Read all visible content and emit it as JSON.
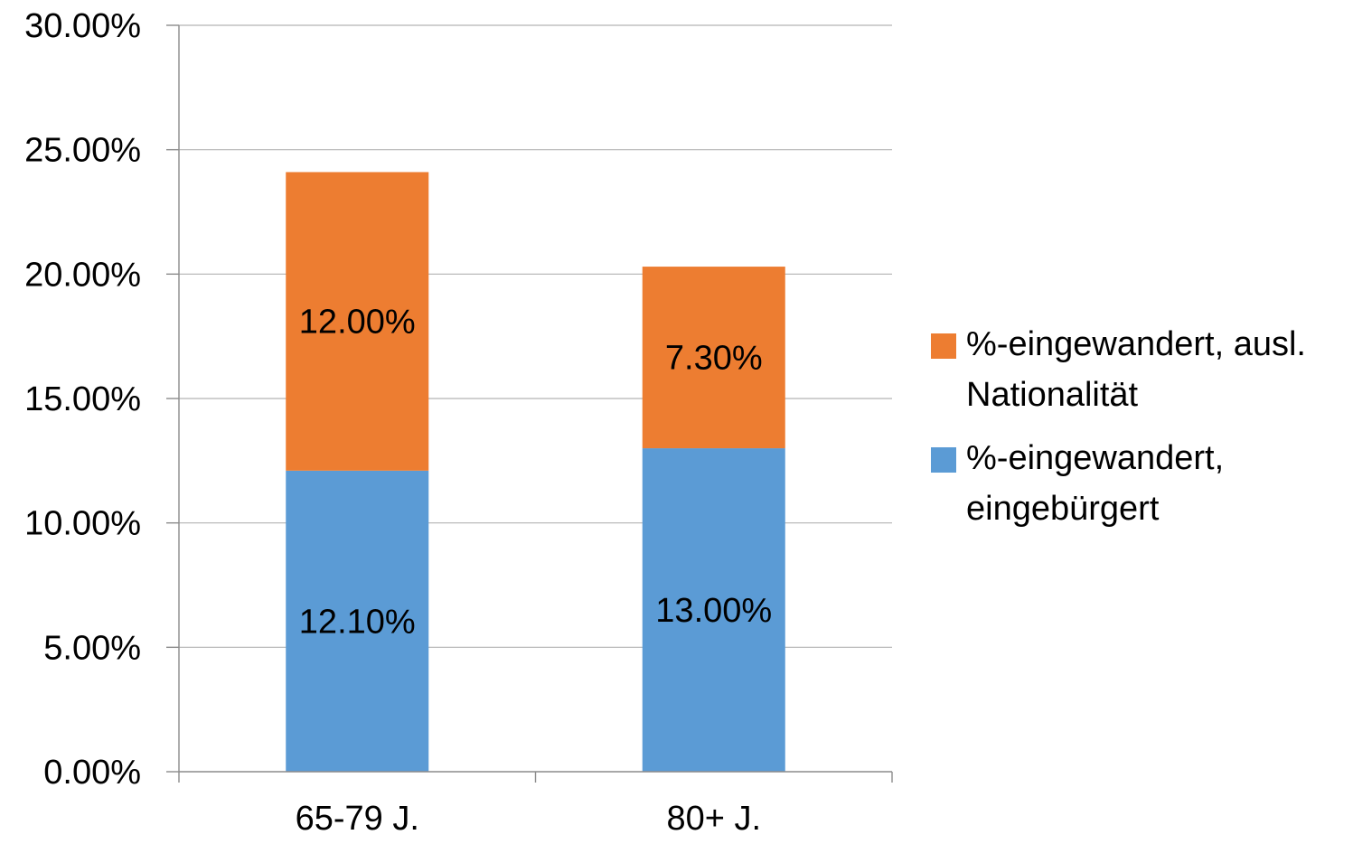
{
  "chart_data": {
    "type": "bar",
    "stacked": true,
    "categories": [
      "65-79 J.",
      "80+ J."
    ],
    "series": [
      {
        "name": "%-eingewandert, eingebürgert",
        "legend_lines": [
          "%-eingewandert,",
          "eingebürgert"
        ],
        "values": [
          12.1,
          13.0
        ],
        "labels": [
          "12.10%",
          "13.00%"
        ],
        "color": "#5b9bd5"
      },
      {
        "name": "%-eingewandert, ausl. Nationalität",
        "legend_lines": [
          "%-eingewandert, ausl.",
          "Nationalität"
        ],
        "values": [
          12.0,
          7.3
        ],
        "labels": [
          "12.00%",
          "7.30%"
        ],
        "color": "#ed7d31"
      }
    ],
    "ylim": [
      0,
      30
    ],
    "yticks": [
      0,
      5,
      10,
      15,
      20,
      25,
      30
    ],
    "ytick_labels": [
      "0.00%",
      "5.00%",
      "10.00%",
      "15.00%",
      "20.00%",
      "25.00%",
      "30.00%"
    ],
    "grid": true,
    "legend_position": "right",
    "legend_order": [
      1,
      0
    ],
    "title": "",
    "xlabel": "",
    "ylabel": ""
  }
}
